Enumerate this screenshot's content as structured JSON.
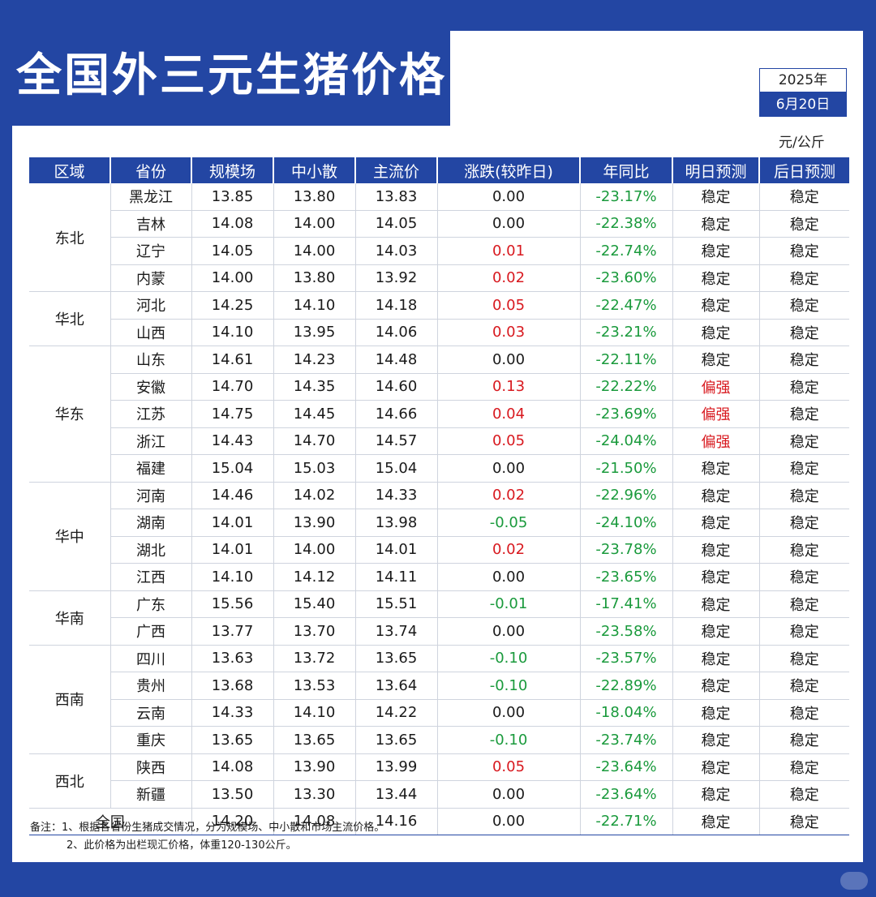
{
  "title": "全国外三元生猪价格",
  "date": {
    "year": "2025年",
    "day": "6月20日"
  },
  "unit": "元/公斤",
  "headers": [
    "区域",
    "省份",
    "规模场",
    "中小散",
    "主流价",
    "涨跌(较昨日)",
    "年同比",
    "明日预测",
    "后日预测"
  ],
  "colors": {
    "brand": "#2346a3",
    "up": "#d8191f",
    "down": "#1a9a3c"
  },
  "regions": [
    {
      "name": "东北",
      "rows": [
        {
          "province": "黑龙江",
          "large": "13.85",
          "small": "13.80",
          "main": "13.83",
          "change": "0.00",
          "dir": "neutral",
          "yoy": "-23.17%",
          "tomorrow": "稳定",
          "tomorrow_dir": "neutral",
          "after": "稳定"
        },
        {
          "province": "吉林",
          "large": "14.08",
          "small": "14.00",
          "main": "14.05",
          "change": "0.00",
          "dir": "neutral",
          "yoy": "-22.38%",
          "tomorrow": "稳定",
          "tomorrow_dir": "neutral",
          "after": "稳定"
        },
        {
          "province": "辽宁",
          "large": "14.05",
          "small": "14.00",
          "main": "14.03",
          "change": "0.01",
          "dir": "up",
          "yoy": "-22.74%",
          "tomorrow": "稳定",
          "tomorrow_dir": "neutral",
          "after": "稳定"
        },
        {
          "province": "内蒙",
          "large": "14.00",
          "small": "13.80",
          "main": "13.92",
          "change": "0.02",
          "dir": "up",
          "yoy": "-23.60%",
          "tomorrow": "稳定",
          "tomorrow_dir": "neutral",
          "after": "稳定"
        }
      ]
    },
    {
      "name": "华北",
      "rows": [
        {
          "province": "河北",
          "large": "14.25",
          "small": "14.10",
          "main": "14.18",
          "change": "0.05",
          "dir": "up",
          "yoy": "-22.47%",
          "tomorrow": "稳定",
          "tomorrow_dir": "neutral",
          "after": "稳定"
        },
        {
          "province": "山西",
          "large": "14.10",
          "small": "13.95",
          "main": "14.06",
          "change": "0.03",
          "dir": "up",
          "yoy": "-23.21%",
          "tomorrow": "稳定",
          "tomorrow_dir": "neutral",
          "after": "稳定"
        }
      ]
    },
    {
      "name": "华东",
      "rows": [
        {
          "province": "山东",
          "large": "14.61",
          "small": "14.23",
          "main": "14.48",
          "change": "0.00",
          "dir": "neutral",
          "yoy": "-22.11%",
          "tomorrow": "稳定",
          "tomorrow_dir": "neutral",
          "after": "稳定"
        },
        {
          "province": "安徽",
          "large": "14.70",
          "small": "14.35",
          "main": "14.60",
          "change": "0.13",
          "dir": "up",
          "yoy": "-22.22%",
          "tomorrow": "偏强",
          "tomorrow_dir": "up",
          "after": "稳定"
        },
        {
          "province": "江苏",
          "large": "14.75",
          "small": "14.45",
          "main": "14.66",
          "change": "0.04",
          "dir": "up",
          "yoy": "-23.69%",
          "tomorrow": "偏强",
          "tomorrow_dir": "up",
          "after": "稳定"
        },
        {
          "province": "浙江",
          "large": "14.43",
          "small": "14.70",
          "main": "14.57",
          "change": "0.05",
          "dir": "up",
          "yoy": "-24.04%",
          "tomorrow": "偏强",
          "tomorrow_dir": "up",
          "after": "稳定"
        },
        {
          "province": "福建",
          "large": "15.04",
          "small": "15.03",
          "main": "15.04",
          "change": "0.00",
          "dir": "neutral",
          "yoy": "-21.50%",
          "tomorrow": "稳定",
          "tomorrow_dir": "neutral",
          "after": "稳定"
        }
      ]
    },
    {
      "name": "华中",
      "rows": [
        {
          "province": "河南",
          "large": "14.46",
          "small": "14.02",
          "main": "14.33",
          "change": "0.02",
          "dir": "up",
          "yoy": "-22.96%",
          "tomorrow": "稳定",
          "tomorrow_dir": "neutral",
          "after": "稳定"
        },
        {
          "province": "湖南",
          "large": "14.01",
          "small": "13.90",
          "main": "13.98",
          "change": "-0.05",
          "dir": "down",
          "yoy": "-24.10%",
          "tomorrow": "稳定",
          "tomorrow_dir": "neutral",
          "after": "稳定"
        },
        {
          "province": "湖北",
          "large": "14.01",
          "small": "14.00",
          "main": "14.01",
          "change": "0.02",
          "dir": "up",
          "yoy": "-23.78%",
          "tomorrow": "稳定",
          "tomorrow_dir": "neutral",
          "after": "稳定"
        },
        {
          "province": "江西",
          "large": "14.10",
          "small": "14.12",
          "main": "14.11",
          "change": "0.00",
          "dir": "neutral",
          "yoy": "-23.65%",
          "tomorrow": "稳定",
          "tomorrow_dir": "neutral",
          "after": "稳定"
        }
      ]
    },
    {
      "name": "华南",
      "rows": [
        {
          "province": "广东",
          "large": "15.56",
          "small": "15.40",
          "main": "15.51",
          "change": "-0.01",
          "dir": "down",
          "yoy": "-17.41%",
          "tomorrow": "稳定",
          "tomorrow_dir": "neutral",
          "after": "稳定"
        },
        {
          "province": "广西",
          "large": "13.77",
          "small": "13.70",
          "main": "13.74",
          "change": "0.00",
          "dir": "neutral",
          "yoy": "-23.58%",
          "tomorrow": "稳定",
          "tomorrow_dir": "neutral",
          "after": "稳定"
        }
      ]
    },
    {
      "name": "西南",
      "rows": [
        {
          "province": "四川",
          "large": "13.63",
          "small": "13.72",
          "main": "13.65",
          "change": "-0.10",
          "dir": "down",
          "yoy": "-23.57%",
          "tomorrow": "稳定",
          "tomorrow_dir": "neutral",
          "after": "稳定"
        },
        {
          "province": "贵州",
          "large": "13.68",
          "small": "13.53",
          "main": "13.64",
          "change": "-0.10",
          "dir": "down",
          "yoy": "-22.89%",
          "tomorrow": "稳定",
          "tomorrow_dir": "neutral",
          "after": "稳定"
        },
        {
          "province": "云南",
          "large": "14.33",
          "small": "14.10",
          "main": "14.22",
          "change": "0.00",
          "dir": "neutral",
          "yoy": "-18.04%",
          "tomorrow": "稳定",
          "tomorrow_dir": "neutral",
          "after": "稳定"
        },
        {
          "province": "重庆",
          "large": "13.65",
          "small": "13.65",
          "main": "13.65",
          "change": "-0.10",
          "dir": "down",
          "yoy": "-23.74%",
          "tomorrow": "稳定",
          "tomorrow_dir": "neutral",
          "after": "稳定"
        }
      ]
    },
    {
      "name": "西北",
      "rows": [
        {
          "province": "陕西",
          "large": "14.08",
          "small": "13.90",
          "main": "13.99",
          "change": "0.05",
          "dir": "up",
          "yoy": "-23.64%",
          "tomorrow": "稳定",
          "tomorrow_dir": "neutral",
          "after": "稳定"
        },
        {
          "province": "新疆",
          "large": "13.50",
          "small": "13.30",
          "main": "13.44",
          "change": "0.00",
          "dir": "neutral",
          "yoy": "-23.64%",
          "tomorrow": "稳定",
          "tomorrow_dir": "neutral",
          "after": "稳定"
        }
      ]
    }
  ],
  "national": {
    "label": "全国",
    "large": "14.20",
    "small": "14.08",
    "main": "14.16",
    "change": "0.00",
    "yoy": "-22.71%",
    "tomorrow": "稳定",
    "after": "稳定"
  },
  "notes": [
    "备注：1、根据各省份生猪成交情况，分为规模场、中小散和市场主流价格。",
    "2、此价格为出栏现汇价格，体重120-130公斤。"
  ]
}
